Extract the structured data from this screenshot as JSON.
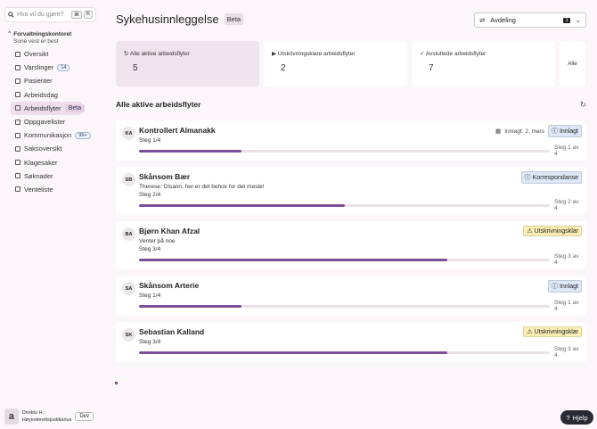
{
  "search": {
    "placeholder": "Hva vil du gjøre?",
    "keys": [
      "⌘",
      "K"
    ]
  },
  "org": {
    "name": "Forvaltningskontoret",
    "subtitle": "Sone vest er best"
  },
  "nav": [
    {
      "label": "Oversikt"
    },
    {
      "label": "Varslinger",
      "badge": "14"
    },
    {
      "label": "Pasienter"
    },
    {
      "label": "Arbeidsdag"
    },
    {
      "label": "Arbeidsflyter",
      "badge": "Beta",
      "active": true
    },
    {
      "label": "Oppgavelister"
    },
    {
      "label": "Kommunikasjon",
      "badge": "99+"
    },
    {
      "label": "Saksoversikt"
    },
    {
      "label": "Klagesaker"
    },
    {
      "label": "Søknader"
    },
    {
      "label": "Venteliste"
    }
  ],
  "user": {
    "initial": "a",
    "name": "Direktu H.",
    "role": "Høyesterettsjustitiarius",
    "env": "Dev"
  },
  "header": {
    "title": "Sykehusinnleggelse",
    "badge": "Beta",
    "filter": {
      "label": "Avdeling",
      "count": 1
    }
  },
  "stats": [
    {
      "label": "Alle aktive arbeidsflyter",
      "value": 5,
      "active": true
    },
    {
      "label": "Utskrivningsklare arbeidsflyter",
      "value": 2
    },
    {
      "label": "Avsluttede arbeidsflyter",
      "value": 7
    },
    {
      "label": "Alle"
    }
  ],
  "section": {
    "title": "Alle aktive arbeidsflyter"
  },
  "workflows": [
    {
      "initials": "KA",
      "name": "Kontrollert Almanakk",
      "admitted": "Innlagt: 2. mars",
      "step": "Steg 1/4",
      "tag": "Innlagt",
      "tag_color": "#dde8f6",
      "step_text": "Steg 1 av 4"
    },
    {
      "initials": "SB",
      "name": "Skånsom Bær",
      "note": "Therese: Gisann, her er det behov for det meste!",
      "step": "Steg 2/4",
      "tag": "Korrespondanse",
      "tag_color": "#dde8f6",
      "step_text": "Steg 2 av 4"
    },
    {
      "initials": "BA",
      "name": "Bjørn Khan Afzal",
      "note": "Venter på noe",
      "step": "Steg 3/4",
      "tag": "Utskrivningsklar",
      "tag_color": "#fbeeb4",
      "step_text": "Steg 3 av 4"
    },
    {
      "initials": "SA",
      "name": "Skånsom Arterie",
      "step": "Steg 1/4",
      "tag": "Innlagt",
      "tag_color": "#dde8f6",
      "step_text": "Steg 1 av 4"
    },
    {
      "initials": "SK",
      "name": "Sebastian Kalland",
      "step": "Steg 3/4",
      "tag": "Utskrivningsklar",
      "tag_color": "#fbeeb4",
      "step_text": "Steg 3 av 4"
    }
  ],
  "help": "Hjelp"
}
